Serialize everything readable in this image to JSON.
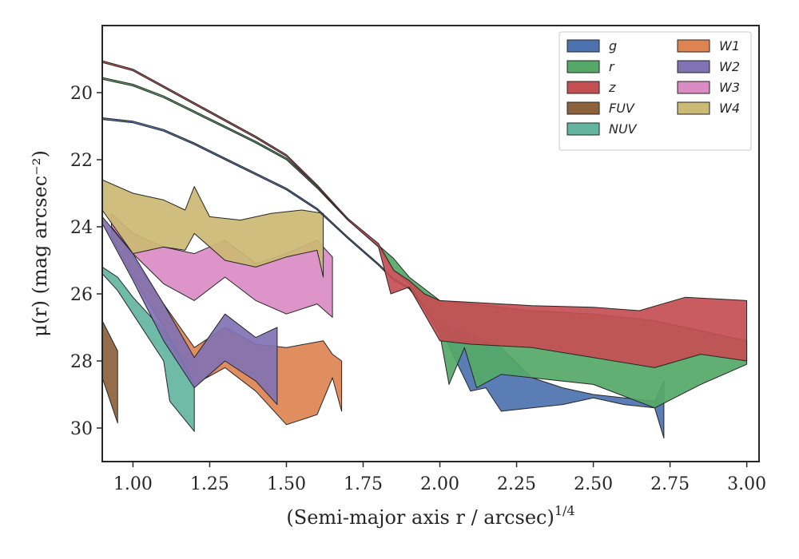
{
  "chart_data": {
    "type": "area",
    "xlabel": "(Semi-major axis r / arcsec)",
    "xlabel_sup": "1/4",
    "ylabel": "μ(r) (mag arcsec⁻²)",
    "xlim": [
      0.9,
      3.04
    ],
    "ylim": [
      31.0,
      18.0
    ],
    "y_inverted": true,
    "xticks": [
      1.0,
      1.25,
      1.5,
      1.75,
      2.0,
      2.25,
      2.5,
      2.75,
      3.0
    ],
    "xtick_labels": [
      "1.00",
      "1.25",
      "1.50",
      "1.75",
      "2.00",
      "2.25",
      "2.50",
      "2.75",
      "3.00"
    ],
    "yticks": [
      20,
      22,
      24,
      26,
      28,
      30
    ],
    "ytick_labels": [
      "20",
      "22",
      "24",
      "26",
      "28",
      "30"
    ],
    "grid": false,
    "legend_position": "top-right",
    "legend_columns": 2,
    "series": [
      {
        "name": "g",
        "color": "#4c72b0",
        "upper": [
          [
            0.9,
            20.75
          ],
          [
            1.0,
            20.85
          ],
          [
            1.1,
            21.1
          ],
          [
            1.2,
            21.5
          ],
          [
            1.3,
            21.95
          ],
          [
            1.4,
            22.4
          ],
          [
            1.5,
            22.85
          ],
          [
            1.6,
            23.45
          ],
          [
            1.7,
            24.3
          ],
          [
            1.8,
            25.1
          ],
          [
            1.85,
            25.55
          ],
          [
            1.9,
            25.8
          ]
        ],
        "lower": [
          [
            0.9,
            20.8
          ],
          [
            1.0,
            20.9
          ],
          [
            1.1,
            21.15
          ],
          [
            1.2,
            21.55
          ],
          [
            1.3,
            22.0
          ],
          [
            1.4,
            22.45
          ],
          [
            1.5,
            22.9
          ],
          [
            1.6,
            23.5
          ],
          [
            1.7,
            24.35
          ],
          [
            1.8,
            25.15
          ],
          [
            1.85,
            25.6
          ],
          [
            1.9,
            25.85
          ]
        ],
        "upper_tail": [
          [
            1.9,
            25.8
          ],
          [
            2.0,
            26.9
          ],
          [
            2.1,
            27.2
          ],
          [
            2.2,
            27.6
          ],
          [
            2.3,
            28.5
          ],
          [
            2.4,
            28.8
          ],
          [
            2.5,
            29.0
          ],
          [
            2.6,
            29.1
          ],
          [
            2.7,
            29.2
          ],
          [
            2.73,
            28.6
          ]
        ],
        "lower_tail": [
          [
            1.9,
            25.85
          ],
          [
            2.0,
            27.0
          ],
          [
            2.1,
            28.9
          ],
          [
            2.15,
            28.8
          ],
          [
            2.2,
            29.5
          ],
          [
            2.3,
            29.4
          ],
          [
            2.4,
            29.3
          ],
          [
            2.5,
            29.1
          ],
          [
            2.6,
            29.3
          ],
          [
            2.7,
            29.4
          ],
          [
            2.73,
            30.3
          ]
        ]
      },
      {
        "name": "r",
        "color": "#55a868",
        "upper": [
          [
            0.9,
            19.55
          ],
          [
            1.0,
            19.75
          ],
          [
            1.1,
            20.1
          ],
          [
            1.2,
            20.55
          ],
          [
            1.3,
            21.0
          ],
          [
            1.4,
            21.45
          ],
          [
            1.5,
            21.95
          ],
          [
            1.6,
            22.8
          ],
          [
            1.7,
            23.75
          ],
          [
            1.8,
            24.55
          ],
          [
            1.85,
            24.95
          ],
          [
            1.9,
            25.5
          ],
          [
            2.0,
            26.2
          ],
          [
            2.3,
            26.5
          ],
          [
            2.5,
            26.6
          ],
          [
            2.7,
            26.8
          ],
          [
            2.8,
            27.0
          ],
          [
            3.0,
            27.4
          ]
        ],
        "lower": [
          [
            0.9,
            19.6
          ],
          [
            1.0,
            19.8
          ],
          [
            1.1,
            20.15
          ],
          [
            1.2,
            20.6
          ],
          [
            1.3,
            21.05
          ],
          [
            1.4,
            21.5
          ],
          [
            1.5,
            22.0
          ],
          [
            1.6,
            22.85
          ],
          [
            1.7,
            23.8
          ],
          [
            1.8,
            24.6
          ],
          [
            1.85,
            25.3
          ],
          [
            1.9,
            25.7
          ],
          [
            2.0,
            27.2
          ],
          [
            2.03,
            28.7
          ],
          [
            2.08,
            27.6
          ],
          [
            2.12,
            28.8
          ],
          [
            2.2,
            28.4
          ],
          [
            2.4,
            28.6
          ],
          [
            2.5,
            28.7
          ],
          [
            2.7,
            29.4
          ],
          [
            2.85,
            28.7
          ],
          [
            3.0,
            28.1
          ]
        ]
      },
      {
        "name": "z",
        "color": "#c44e52",
        "upper": [
          [
            0.9,
            19.05
          ],
          [
            1.0,
            19.3
          ],
          [
            1.1,
            19.8
          ],
          [
            1.2,
            20.3
          ],
          [
            1.3,
            20.8
          ],
          [
            1.4,
            21.3
          ],
          [
            1.5,
            21.85
          ],
          [
            1.6,
            22.75
          ],
          [
            1.7,
            23.75
          ],
          [
            1.8,
            24.5
          ],
          [
            1.85,
            25.3
          ],
          [
            1.9,
            25.6
          ],
          [
            1.95,
            26.0
          ],
          [
            2.0,
            26.2
          ],
          [
            2.3,
            26.35
          ],
          [
            2.5,
            26.4
          ],
          [
            2.65,
            26.5
          ],
          [
            2.8,
            26.1
          ],
          [
            3.0,
            26.2
          ]
        ],
        "lower": [
          [
            0.9,
            19.1
          ],
          [
            1.0,
            19.35
          ],
          [
            1.1,
            19.85
          ],
          [
            1.2,
            20.35
          ],
          [
            1.3,
            20.85
          ],
          [
            1.4,
            21.35
          ],
          [
            1.5,
            21.9
          ],
          [
            1.6,
            22.8
          ],
          [
            1.7,
            23.8
          ],
          [
            1.8,
            24.6
          ],
          [
            1.84,
            26.0
          ],
          [
            1.9,
            25.8
          ],
          [
            2.0,
            27.4
          ],
          [
            2.1,
            27.5
          ],
          [
            2.3,
            27.6
          ],
          [
            2.5,
            27.9
          ],
          [
            2.7,
            28.2
          ],
          [
            2.85,
            27.8
          ],
          [
            3.0,
            28.0
          ]
        ]
      },
      {
        "name": "FUV",
        "color": "#8c613c",
        "upper": [
          [
            0.9,
            26.8
          ],
          [
            0.95,
            27.7
          ]
        ],
        "lower": [
          [
            0.9,
            28.5
          ],
          [
            0.95,
            29.85
          ]
        ]
      },
      {
        "name": "NUV",
        "color": "#64b5a0",
        "upper": [
          [
            0.9,
            25.2
          ],
          [
            0.95,
            25.5
          ],
          [
            1.0,
            26.1
          ],
          [
            1.1,
            27.1
          ],
          [
            1.2,
            28.2
          ]
        ],
        "lower": [
          [
            0.9,
            25.4
          ],
          [
            0.95,
            25.9
          ],
          [
            1.0,
            26.6
          ],
          [
            1.1,
            28.0
          ],
          [
            1.12,
            29.2
          ],
          [
            1.2,
            30.1
          ]
        ]
      },
      {
        "name": "W1",
        "color": "#dd8452",
        "upper": [
          [
            0.93,
            24.0
          ],
          [
            1.0,
            24.9
          ],
          [
            1.1,
            26.3
          ],
          [
            1.2,
            27.6
          ],
          [
            1.3,
            27.0
          ],
          [
            1.4,
            27.5
          ],
          [
            1.5,
            27.6
          ],
          [
            1.62,
            27.4
          ],
          [
            1.65,
            27.8
          ],
          [
            1.68,
            28.0
          ]
        ],
        "lower": [
          [
            0.93,
            24.3
          ],
          [
            1.0,
            25.5
          ],
          [
            1.1,
            27.0
          ],
          [
            1.2,
            28.7
          ],
          [
            1.3,
            28.2
          ],
          [
            1.4,
            28.9
          ],
          [
            1.5,
            29.9
          ],
          [
            1.6,
            29.6
          ],
          [
            1.65,
            28.5
          ],
          [
            1.68,
            29.5
          ]
        ]
      },
      {
        "name": "W2",
        "color": "#8172b3",
        "upper": [
          [
            0.9,
            23.7
          ],
          [
            1.0,
            24.8
          ],
          [
            1.1,
            26.3
          ],
          [
            1.2,
            27.9
          ],
          [
            1.3,
            26.6
          ],
          [
            1.4,
            27.3
          ],
          [
            1.47,
            27.0
          ]
        ],
        "lower": [
          [
            0.9,
            23.9
          ],
          [
            1.0,
            25.6
          ],
          [
            1.1,
            27.4
          ],
          [
            1.2,
            28.8
          ],
          [
            1.3,
            28.0
          ],
          [
            1.4,
            28.6
          ],
          [
            1.47,
            29.3
          ]
        ]
      },
      {
        "name": "W3",
        "color": "#da8bc3",
        "upper": [
          [
            0.93,
            23.6
          ],
          [
            1.0,
            24.2
          ],
          [
            1.1,
            24.6
          ],
          [
            1.2,
            24.8
          ],
          [
            1.3,
            24.4
          ],
          [
            1.4,
            25.1
          ],
          [
            1.5,
            24.8
          ],
          [
            1.6,
            24.4
          ],
          [
            1.65,
            24.9
          ]
        ],
        "lower": [
          [
            0.93,
            24.0
          ],
          [
            1.0,
            24.8
          ],
          [
            1.1,
            25.7
          ],
          [
            1.2,
            26.2
          ],
          [
            1.3,
            25.5
          ],
          [
            1.4,
            26.2
          ],
          [
            1.5,
            26.6
          ],
          [
            1.6,
            26.3
          ],
          [
            1.65,
            26.7
          ]
        ]
      },
      {
        "name": "W4",
        "color": "#ccb974",
        "upper": [
          [
            0.9,
            22.6
          ],
          [
            1.0,
            23.0
          ],
          [
            1.1,
            23.2
          ],
          [
            1.17,
            23.5
          ],
          [
            1.2,
            22.8
          ],
          [
            1.25,
            23.7
          ],
          [
            1.35,
            23.8
          ],
          [
            1.45,
            23.6
          ],
          [
            1.55,
            23.5
          ],
          [
            1.62,
            23.6
          ]
        ],
        "lower": [
          [
            0.9,
            23.5
          ],
          [
            1.0,
            24.8
          ],
          [
            1.1,
            24.6
          ],
          [
            1.17,
            24.7
          ],
          [
            1.2,
            24.2
          ],
          [
            1.3,
            25.0
          ],
          [
            1.4,
            25.2
          ],
          [
            1.5,
            24.9
          ],
          [
            1.6,
            24.7
          ],
          [
            1.62,
            25.5
          ]
        ]
      }
    ]
  }
}
